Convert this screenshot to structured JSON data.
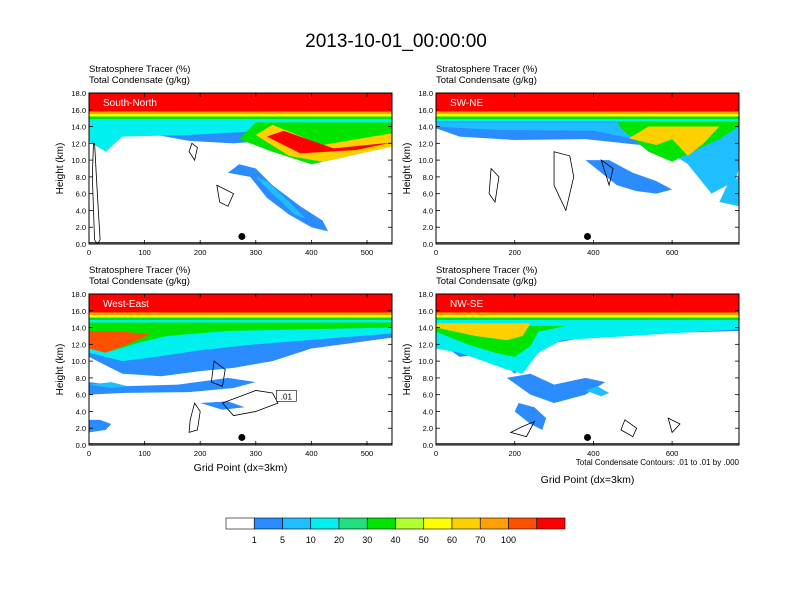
{
  "title": "2013-10-01_00:00:00",
  "panels": [
    {
      "label": "South-North",
      "header_lines": [
        "Stratosphere Tracer   (%)",
        "Total Condensate   (g/kg)"
      ],
      "xticks": [
        "0",
        "100",
        "200",
        "300",
        "400",
        "500"
      ],
      "xmax": 545,
      "yticks": [
        "0.0",
        "2.0",
        "4.0",
        "6.0",
        "8.0",
        "10.0",
        "12.0",
        "14.0",
        "16.0",
        "18.0"
      ],
      "ylabel": "Height (km)",
      "xlabel": "",
      "marker_x": 275,
      "contour_label": "",
      "footnote": ""
    },
    {
      "label": "SW-NE",
      "header_lines": [
        "Stratosphere Tracer   (%)",
        "Total Condensate   (g/kg)"
      ],
      "xticks": [
        "0",
        "200",
        "400",
        "600"
      ],
      "xmax": 770,
      "yticks": [
        "0.0",
        "2.0",
        "4.0",
        "6.0",
        "8.0",
        "10.0",
        "12.0",
        "14.0",
        "16.0",
        "18.0"
      ],
      "ylabel": "Height (km)",
      "xlabel": "",
      "marker_x": 385,
      "contour_label": "",
      "footnote": ""
    },
    {
      "label": "West-East",
      "header_lines": [
        "Stratosphere Tracer   (%)",
        "Total Condensate   (g/kg)"
      ],
      "xticks": [
        "0",
        "100",
        "200",
        "300",
        "400",
        "500"
      ],
      "xmax": 545,
      "yticks": [
        "0.0",
        "2.0",
        "4.0",
        "6.0",
        "8.0",
        "10.0",
        "12.0",
        "14.0",
        "16.0",
        "18.0"
      ],
      "ylabel": "Height (km)",
      "xlabel": "Grid Point (dx=3km)",
      "marker_x": 275,
      "contour_label": ".01",
      "footnote": ""
    },
    {
      "label": "NW-SE",
      "header_lines": [
        "Stratosphere Tracer   (%)",
        "Total Condensate   (g/kg)"
      ],
      "xticks": [
        "0",
        "200",
        "400",
        "600"
      ],
      "xmax": 770,
      "yticks": [
        "0.0",
        "2.0",
        "4.0",
        "6.0",
        "8.0",
        "10.0",
        "12.0",
        "14.0",
        "16.0",
        "18.0"
      ],
      "ylabel": "Height (km)",
      "xlabel": "Grid Point (dx=3km)",
      "marker_x": 385,
      "contour_label": "",
      "footnote": "Total Condensate Contours: .01 to .01 by .000"
    }
  ],
  "colorbar": {
    "labels": [
      "1",
      "5",
      "10",
      "20",
      "30",
      "40",
      "50",
      "60",
      "70",
      "100"
    ],
    "colors": [
      "#ffffff",
      "#2b8cff",
      "#1fbfff",
      "#00f0f0",
      "#20e080",
      "#00e400",
      "#b0ff30",
      "#ffff00",
      "#ffd000",
      "#ffa000",
      "#ff5000",
      "#ff0000"
    ]
  },
  "chart_data": [
    {
      "type": "heatmap",
      "title": "South-North",
      "xlabel": "",
      "ylabel": "Height (km)",
      "xlim": [
        0,
        545
      ],
      "ylim": [
        0,
        18
      ],
      "legend_levels": [
        1,
        5,
        10,
        20,
        30,
        40,
        50,
        60,
        70,
        100
      ],
      "features": {
        "stratosphere_top_km": 15.5,
        "tropopause_fold_x": [
          290,
          410
        ],
        "low_tracer_tongue_x": [
          250,
          430
        ],
        "surface_point_x": 275
      }
    },
    {
      "type": "heatmap",
      "title": "SW-NE",
      "xlabel": "",
      "ylabel": "Height (km)",
      "xlim": [
        0,
        770
      ],
      "ylim": [
        0,
        18
      ],
      "legend_levels": [
        1,
        5,
        10,
        20,
        30,
        40,
        50,
        60,
        70,
        100
      ],
      "features": {
        "stratosphere_top_km": 15.5,
        "tropopause_fold_x": [
          480,
          650
        ],
        "surface_point_x": 385
      }
    },
    {
      "type": "heatmap",
      "title": "West-East",
      "xlabel": "Grid Point (dx=3km)",
      "ylabel": "Height (km)",
      "xlim": [
        0,
        545
      ],
      "ylim": [
        0,
        18
      ],
      "legend_levels": [
        1,
        5,
        10,
        20,
        30,
        40,
        50,
        60,
        70,
        100
      ],
      "features": {
        "stratosphere_top_km": 15.5,
        "tropopause_fold_x": [
          0,
          100
        ],
        "surface_point_x": 275
      }
    },
    {
      "type": "heatmap",
      "title": "NW-SE",
      "xlabel": "Grid Point (dx=3km)",
      "ylabel": "Height (km)",
      "xlim": [
        0,
        770
      ],
      "ylim": [
        0,
        18
      ],
      "legend_levels": [
        1,
        5,
        10,
        20,
        30,
        40,
        50,
        60,
        70,
        100
      ],
      "features": {
        "stratosphere_top_km": 15.5,
        "tropopause_fold_x": [
          0,
          230
        ],
        "surface_point_x": 385
      }
    }
  ]
}
